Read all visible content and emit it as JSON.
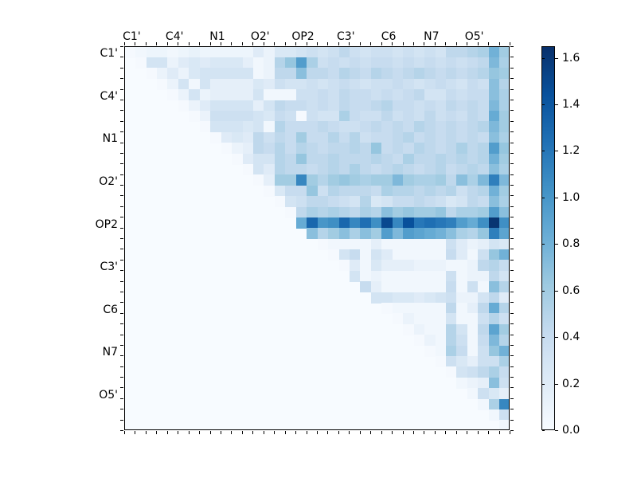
{
  "window": {
    "background": "#ffffff"
  },
  "chart_data": {
    "type": "heatmap",
    "title": "",
    "xlabel": "",
    "ylabel": "",
    "x_tick_labels": [
      "C1'",
      "C4'",
      "N1",
      "O2'",
      "OP2",
      "C3'",
      "C6",
      "N7",
      "O5'"
    ],
    "y_tick_labels": [
      "C1'",
      "C4'",
      "N1",
      "O2'",
      "OP2",
      "C3'",
      "C6",
      "N7",
      "O5'"
    ],
    "grid_size": 36,
    "cells_per_label": 4,
    "shape": "upper-triangular",
    "vmin": 0.0,
    "vmax": 1.65,
    "colormap": "Blues",
    "colormap_rgb_stops": [
      [
        247,
        251,
        255
      ],
      [
        222,
        235,
        247
      ],
      [
        198,
        219,
        239
      ],
      [
        158,
        202,
        225
      ],
      [
        107,
        174,
        214
      ],
      [
        66,
        146,
        198
      ],
      [
        33,
        113,
        181
      ],
      [
        8,
        81,
        156
      ],
      [
        8,
        48,
        107
      ]
    ],
    "colorbar_tick_labels": [
      "0.0",
      "0.2",
      "0.4",
      "0.6",
      "0.8",
      "1.0",
      "1.2",
      "1.4",
      "1.6"
    ],
    "colorbar_tick_values": [
      0.0,
      0.2,
      0.4,
      0.6,
      0.8,
      1.0,
      1.2,
      1.4,
      1.6
    ],
    "triangle_rows_note": "row i contains values for columns i..35 (upper triangle incl. diagonal); lower triangle is masked white",
    "triangle_rows": [
      [
        0.02,
        0.05,
        0.08,
        0.08,
        0.05,
        0.08,
        0.12,
        0.08,
        0.08,
        0.08,
        0.08,
        0.08,
        0.2,
        0.1,
        0.25,
        0.25,
        0.3,
        0.35,
        0.3,
        0.35,
        0.45,
        0.35,
        0.3,
        0.35,
        0.35,
        0.3,
        0.35,
        0.3,
        0.35,
        0.3,
        0.45,
        0.45,
        0.5,
        0.55,
        0.8,
        0.6
      ],
      [
        0.02,
        0.3,
        0.3,
        0.1,
        0.2,
        0.25,
        0.2,
        0.25,
        0.25,
        0.25,
        0.15,
        0.05,
        0.1,
        0.5,
        0.65,
        0.95,
        0.55,
        0.35,
        0.4,
        0.35,
        0.4,
        0.35,
        0.4,
        0.4,
        0.35,
        0.4,
        0.35,
        0.4,
        0.35,
        0.4,
        0.35,
        0.4,
        0.45,
        0.75,
        0.55
      ],
      [
        0.02,
        0.1,
        0.2,
        0.1,
        0.25,
        0.3,
        0.3,
        0.3,
        0.3,
        0.3,
        0.05,
        0.1,
        0.45,
        0.45,
        0.7,
        0.45,
        0.45,
        0.4,
        0.5,
        0.45,
        0.4,
        0.5,
        0.45,
        0.4,
        0.45,
        0.5,
        0.45,
        0.4,
        0.45,
        0.4,
        0.45,
        0.5,
        0.65,
        0.6
      ],
      [
        0.02,
        0.1,
        0.3,
        0.05,
        0.3,
        0.15,
        0.15,
        0.15,
        0.15,
        0.25,
        0.2,
        0.35,
        0.3,
        0.3,
        0.35,
        0.3,
        0.35,
        0.4,
        0.35,
        0.3,
        0.35,
        0.35,
        0.4,
        0.35,
        0.3,
        0.35,
        0.4,
        0.35,
        0.3,
        0.4,
        0.35,
        0.7,
        0.5
      ],
      [
        0.02,
        0.1,
        0.3,
        0.1,
        0.15,
        0.15,
        0.15,
        0.15,
        0.3,
        0.05,
        0.05,
        0.05,
        0.35,
        0.35,
        0.4,
        0.35,
        0.45,
        0.4,
        0.4,
        0.35,
        0.4,
        0.35,
        0.4,
        0.45,
        0.3,
        0.3,
        0.4,
        0.35,
        0.4,
        0.4,
        0.7,
        0.55
      ],
      [
        0.02,
        0.1,
        0.2,
        0.3,
        0.3,
        0.3,
        0.3,
        0.15,
        0.3,
        0.45,
        0.4,
        0.4,
        0.35,
        0.4,
        0.35,
        0.45,
        0.4,
        0.4,
        0.45,
        0.5,
        0.4,
        0.4,
        0.35,
        0.4,
        0.35,
        0.45,
        0.4,
        0.45,
        0.4,
        0.75,
        0.55
      ],
      [
        0.02,
        0.1,
        0.35,
        0.35,
        0.35,
        0.35,
        0.3,
        0.25,
        0.4,
        0.35,
        0.02,
        0.35,
        0.3,
        0.3,
        0.55,
        0.4,
        0.35,
        0.35,
        0.45,
        0.35,
        0.4,
        0.35,
        0.45,
        0.35,
        0.4,
        0.35,
        0.45,
        0.4,
        0.85,
        0.6
      ],
      [
        0.02,
        0.3,
        0.3,
        0.3,
        0.25,
        0.3,
        0.05,
        0.5,
        0.4,
        0.4,
        0.4,
        0.45,
        0.4,
        0.35,
        0.35,
        0.4,
        0.45,
        0.4,
        0.45,
        0.4,
        0.5,
        0.45,
        0.4,
        0.45,
        0.4,
        0.45,
        0.5,
        0.75,
        0.6
      ],
      [
        0.02,
        0.2,
        0.25,
        0.2,
        0.45,
        0.35,
        0.45,
        0.4,
        0.6,
        0.4,
        0.4,
        0.5,
        0.4,
        0.5,
        0.35,
        0.4,
        0.4,
        0.45,
        0.5,
        0.4,
        0.45,
        0.4,
        0.45,
        0.4,
        0.45,
        0.4,
        0.7,
        0.55
      ],
      [
        0.02,
        0.1,
        0.15,
        0.45,
        0.4,
        0.5,
        0.4,
        0.5,
        0.45,
        0.4,
        0.45,
        0.45,
        0.5,
        0.45,
        0.65,
        0.4,
        0.45,
        0.4,
        0.5,
        0.45,
        0.4,
        0.45,
        0.55,
        0.45,
        0.5,
        0.95,
        0.65
      ],
      [
        0.02,
        0.2,
        0.3,
        0.3,
        0.5,
        0.45,
        0.65,
        0.45,
        0.45,
        0.5,
        0.45,
        0.45,
        0.45,
        0.5,
        0.45,
        0.4,
        0.55,
        0.45,
        0.45,
        0.5,
        0.45,
        0.5,
        0.45,
        0.5,
        0.8,
        0.6
      ],
      [
        0.02,
        0.3,
        0.2,
        0.5,
        0.45,
        0.45,
        0.4,
        0.45,
        0.5,
        0.45,
        0.55,
        0.45,
        0.4,
        0.45,
        0.5,
        0.45,
        0.4,
        0.45,
        0.5,
        0.4,
        0.45,
        0.5,
        0.45,
        0.7,
        0.55
      ],
      [
        0.02,
        0.15,
        0.6,
        0.6,
        1.1,
        0.6,
        0.5,
        0.6,
        0.65,
        0.6,
        0.55,
        0.6,
        0.6,
        0.75,
        0.6,
        0.55,
        0.55,
        0.6,
        0.45,
        0.7,
        0.55,
        0.75,
        1.15,
        0.75
      ],
      [
        0.02,
        0.25,
        0.4,
        0.4,
        0.65,
        0.35,
        0.5,
        0.45,
        0.45,
        0.45,
        0.4,
        0.55,
        0.5,
        0.5,
        0.45,
        0.5,
        0.45,
        0.5,
        0.35,
        0.45,
        0.5,
        0.8,
        0.6
      ],
      [
        0.02,
        0.3,
        0.35,
        0.45,
        0.45,
        0.4,
        0.35,
        0.3,
        0.5,
        0.25,
        0.3,
        0.4,
        0.4,
        0.45,
        0.4,
        0.35,
        0.25,
        0.3,
        0.45,
        0.4,
        0.7,
        0.55
      ],
      [
        0.02,
        0.45,
        0.55,
        0.5,
        0.55,
        0.5,
        0.45,
        0.55,
        0.5,
        0.7,
        0.6,
        0.65,
        0.6,
        0.6,
        0.65,
        0.45,
        0.55,
        0.55,
        0.6,
        0.95,
        0.7
      ],
      [
        0.85,
        1.3,
        1.0,
        1.05,
        1.3,
        1.1,
        1.25,
        1.05,
        1.5,
        1.1,
        1.45,
        1.2,
        1.25,
        1.2,
        1.15,
        0.95,
        0.85,
        1.05,
        1.62,
        1.05
      ],
      [
        0.7,
        0.5,
        0.6,
        0.7,
        0.55,
        0.7,
        0.6,
        0.95,
        0.75,
        0.95,
        0.9,
        0.85,
        0.8,
        0.7,
        0.55,
        0.5,
        0.65,
        1.15,
        0.9
      ],
      [
        0.02,
        0.05,
        0.05,
        0.05,
        0.05,
        0.15,
        0.05,
        0.05,
        0.05,
        0.05,
        0.05,
        0.05,
        0.35,
        0.2,
        0.1,
        0.15,
        0.3,
        0.25
      ],
      [
        0.02,
        0.3,
        0.4,
        0.05,
        0.3,
        0.2,
        0.05,
        0.05,
        0.05,
        0.05,
        0.05,
        0.4,
        0.2,
        0.05,
        0.35,
        0.65,
        0.8
      ],
      [
        0.02,
        0.2,
        0.05,
        0.25,
        0.15,
        0.15,
        0.15,
        0.1,
        0.1,
        0.1,
        0.05,
        0.05,
        0.1,
        0.45,
        0.5,
        0.4
      ],
      [
        0.3,
        0.05,
        0.1,
        0.05,
        0.05,
        0.05,
        0.05,
        0.05,
        0.05,
        0.35,
        0.05,
        0.1,
        0.1,
        0.45,
        0.3
      ],
      [
        0.4,
        0.15,
        0.05,
        0.05,
        0.05,
        0.05,
        0.05,
        0.05,
        0.4,
        0.05,
        0.35,
        0.05,
        0.7,
        0.5
      ],
      [
        0.3,
        0.3,
        0.25,
        0.25,
        0.2,
        0.25,
        0.3,
        0.35,
        0.1,
        0.1,
        0.3,
        0.45,
        0.2
      ],
      [
        0.02,
        0.05,
        0.05,
        0.05,
        0.05,
        0.05,
        0.45,
        0.05,
        0.15,
        0.45,
        0.85,
        0.5
      ],
      [
        0.02,
        0.1,
        0.05,
        0.05,
        0.05,
        0.3,
        0.05,
        0.05,
        0.35,
        0.5,
        0.35
      ],
      [
        0.02,
        0.1,
        0.05,
        0.05,
        0.5,
        0.3,
        0.05,
        0.45,
        0.9,
        0.6
      ],
      [
        0.02,
        0.1,
        0.05,
        0.5,
        0.35,
        0.05,
        0.4,
        0.75,
        0.5
      ],
      [
        0.02,
        0.05,
        0.55,
        0.4,
        0.05,
        0.35,
        0.65,
        0.8
      ],
      [
        0.02,
        0.35,
        0.25,
        0.15,
        0.35,
        0.35,
        0.55
      ],
      [
        0.02,
        0.3,
        0.35,
        0.45,
        0.55,
        0.4
      ],
      [
        0.05,
        0.1,
        0.15,
        0.7,
        0.35
      ],
      [
        0.05,
        0.35,
        0.25,
        0.15
      ],
      [
        0.05,
        0.55,
        1.1
      ],
      [
        0.05,
        0.35
      ],
      [
        0.05
      ]
    ],
    "layout": {
      "legend_position": "right-colorbar",
      "grid": "off",
      "tick_direction": "out"
    }
  }
}
